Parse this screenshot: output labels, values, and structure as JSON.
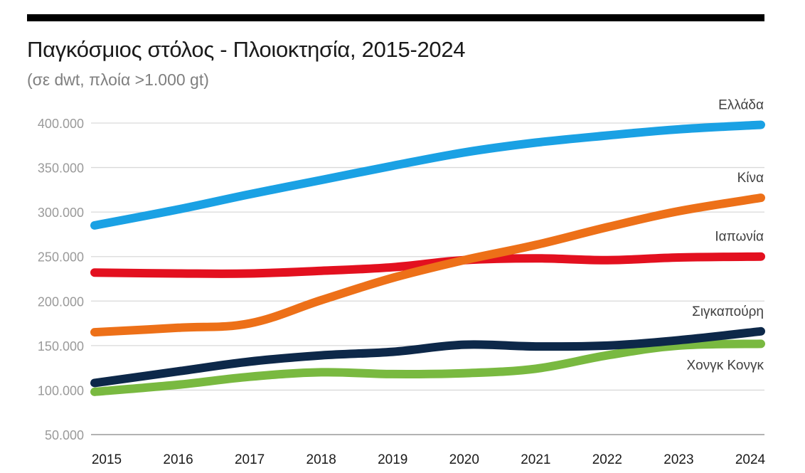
{
  "chart_data": {
    "type": "line",
    "title": "Παγκόσμιος στόλος - Πλοιοκτησία, 2015-2024",
    "subtitle": "(σε dwt, πλοία >1.000 gt)",
    "xlabel": "",
    "ylabel": "",
    "x": [
      2015,
      2016,
      2017,
      2018,
      2019,
      2020,
      2021,
      2022,
      2023,
      2024
    ],
    "categories": [
      "2015",
      "2016",
      "2017",
      "2018",
      "2019",
      "2020",
      "2021",
      "2022",
      "2023",
      "2024"
    ],
    "ylim": [
      50000,
      400000
    ],
    "yticks": [
      50000,
      100000,
      150000,
      200000,
      250000,
      300000,
      350000,
      400000
    ],
    "ytick_labels": [
      "50.000",
      "100.000",
      "150.000",
      "200.000",
      "250.000",
      "300.000",
      "350.000",
      "400.000"
    ],
    "grid": true,
    "legend": "direct labels at line ends (right)",
    "series": [
      {
        "name": "Ελλάδα",
        "color": "#1aa1e4",
        "values": [
          285000,
          303000,
          320000,
          336000,
          352000,
          367000,
          378000,
          386000,
          393000,
          398000
        ]
      },
      {
        "name": "Κίνα",
        "color": "#ed7018",
        "values": [
          165000,
          170000,
          175000,
          201000,
          226000,
          246000,
          263000,
          283000,
          301000,
          316000
        ]
      },
      {
        "name": "Ιαπωνία",
        "color": "#e3101f",
        "values": [
          232000,
          231000,
          231000,
          234000,
          238000,
          246000,
          248000,
          246000,
          249000,
          250000
        ]
      },
      {
        "name": "Σιγκαπούρη",
        "color": "#0d2849",
        "values": [
          108000,
          121000,
          132000,
          139000,
          143000,
          151000,
          149000,
          150000,
          156000,
          166000
        ]
      },
      {
        "name": "Χονγκ Κονγκ",
        "color": "#79b940",
        "values": [
          98000,
          106000,
          115000,
          120000,
          118000,
          119000,
          124000,
          139000,
          150000,
          152000
        ]
      }
    ]
  }
}
